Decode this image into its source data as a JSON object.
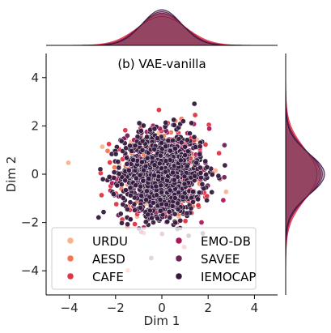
{
  "chart_data": {
    "type": "scatter",
    "title": "(b) VAE-vanilla",
    "xlabel": "Dim 1",
    "ylabel": "Dim 2",
    "xlim": [
      -5,
      5
    ],
    "ylim": [
      -5,
      5
    ],
    "xticks": [
      "−4",
      "−2",
      "0",
      "2",
      "4"
    ],
    "yticks": [
      "4",
      "2",
      "0",
      "−2",
      "−4"
    ],
    "grid": false,
    "legend_position": "bottom",
    "legend_columns": 2,
    "marginals": [
      "top-density",
      "right-density"
    ],
    "series": [
      {
        "name": "URDU",
        "color": "#f6b48f",
        "center": [
          0.0,
          0.0
        ],
        "spread": 1.0,
        "n": 120
      },
      {
        "name": "AESD",
        "color": "#f37651",
        "center": [
          0.0,
          0.0
        ],
        "spread": 0.95,
        "n": 120
      },
      {
        "name": "CAFE",
        "color": "#e13342",
        "center": [
          0.0,
          0.0
        ],
        "spread": 1.05,
        "n": 150
      },
      {
        "name": "EMO-DB",
        "color": "#ad1759",
        "center": [
          0.0,
          0.0
        ],
        "spread": 0.95,
        "n": 120
      },
      {
        "name": "SAVEE",
        "color": "#701f57",
        "center": [
          0.0,
          0.0
        ],
        "spread": 0.9,
        "n": 120
      },
      {
        "name": "IEMOCAP",
        "color": "#35193e",
        "center": [
          0.0,
          0.0
        ],
        "spread": 0.85,
        "n": 1100
      }
    ]
  }
}
